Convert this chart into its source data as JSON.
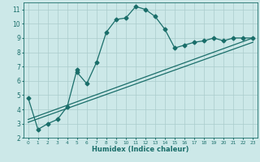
{
  "title": "",
  "xlabel": "Humidex (Indice chaleur)",
  "ylabel": "",
  "bg_color": "#cce8e8",
  "line_color": "#1a6e6a",
  "grid_color": "#aacccc",
  "xlim": [
    -0.5,
    23.5
  ],
  "ylim": [
    2,
    11.5
  ],
  "xticks": [
    0,
    1,
    2,
    3,
    4,
    5,
    6,
    7,
    8,
    9,
    10,
    11,
    12,
    13,
    14,
    15,
    16,
    17,
    18,
    19,
    20,
    21,
    22,
    23
  ],
  "yticks": [
    2,
    3,
    4,
    5,
    6,
    7,
    8,
    9,
    10,
    11
  ],
  "series1_x": [
    0,
    1,
    2,
    3,
    4,
    5,
    5,
    6,
    7,
    8,
    9,
    10,
    11,
    12,
    13,
    14,
    15,
    16,
    17,
    18,
    19,
    20,
    21,
    22,
    23
  ],
  "series1_y": [
    4.8,
    2.6,
    3.0,
    3.3,
    4.2,
    6.8,
    6.6,
    5.8,
    7.3,
    9.4,
    10.3,
    10.4,
    11.2,
    11.0,
    10.5,
    9.6,
    8.3,
    8.5,
    8.7,
    8.8,
    9.0,
    8.8,
    9.0,
    9.0,
    9.0
  ],
  "series2_x": [
    0,
    23
  ],
  "series2_y": [
    3.1,
    8.7
  ],
  "series3_x": [
    0,
    23
  ],
  "series3_y": [
    3.3,
    9.0
  ],
  "marker": "D",
  "markersize": 2.5,
  "linewidth": 0.9
}
